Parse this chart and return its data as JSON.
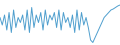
{
  "values": [
    55,
    40,
    60,
    30,
    65,
    25,
    70,
    35,
    55,
    45,
    60,
    30,
    70,
    25,
    75,
    35,
    60,
    45,
    65,
    30,
    70,
    40,
    60,
    50,
    65,
    35,
    70,
    30,
    65,
    45,
    55,
    35,
    60,
    25,
    70,
    30,
    65,
    40,
    55,
    35,
    10,
    5,
    15,
    25,
    35,
    45,
    55,
    60,
    65,
    70,
    72,
    75,
    78,
    80
  ],
  "line_color": "#4f9fce",
  "background_color": "#ffffff",
  "ylim": [
    0,
    90
  ],
  "linewidth": 0.7
}
